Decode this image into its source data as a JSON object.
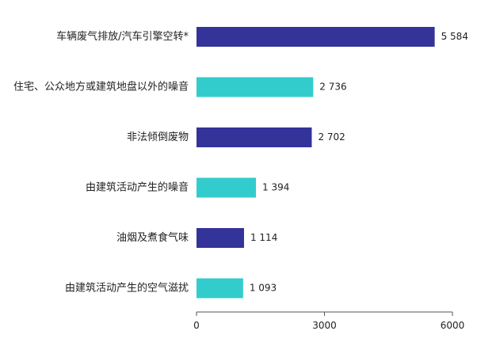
{
  "chart_data": {
    "type": "bar",
    "orientation": "horizontal",
    "categories": [
      "车辆废气排放/汽车引擎空转*",
      "住宅、公众地方或建筑地盘以外的噪音",
      "非法倾倒废物",
      "由建筑活动产生的噪音",
      "油烟及煮食气味",
      "由建筑活动产生的空气滋扰"
    ],
    "values": [
      5584,
      2736,
      2702,
      1394,
      1114,
      1093
    ],
    "value_labels": [
      "5 584",
      "2 736",
      "2 702",
      "1 394",
      "1 114",
      "1 093"
    ],
    "bar_colors": [
      "#333399",
      "#33cccc",
      "#333399",
      "#33cccc",
      "#333399",
      "#33cccc"
    ],
    "xlim": [
      0,
      6000
    ],
    "xticks": [
      0,
      3000,
      6000
    ],
    "xtick_labels": [
      "0",
      "3000",
      "6000"
    ],
    "grid": false,
    "legend": "none"
  }
}
